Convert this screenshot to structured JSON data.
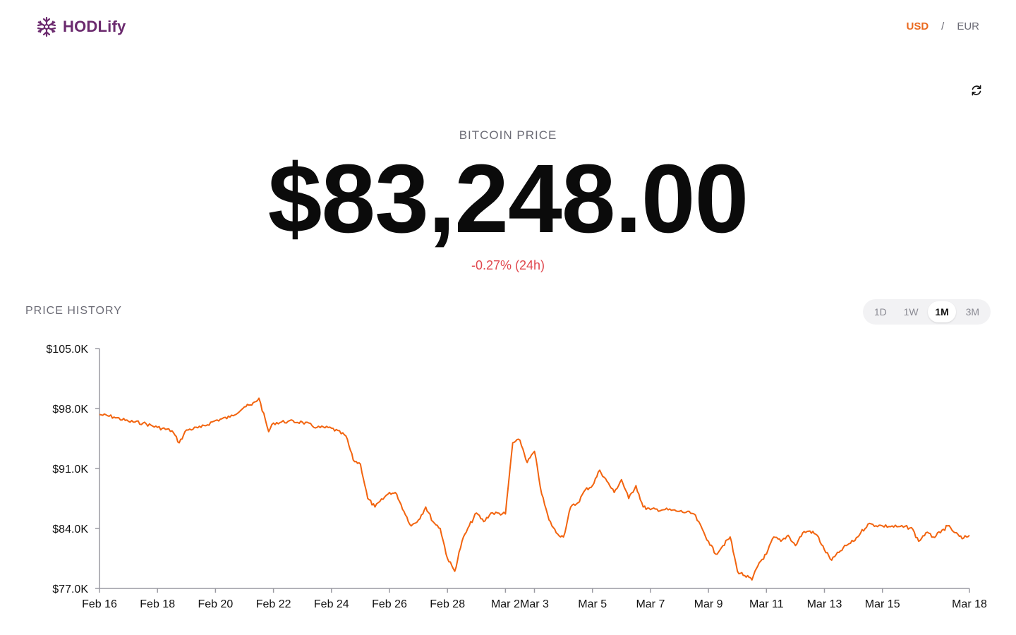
{
  "app": {
    "name": "HODLify"
  },
  "currency": {
    "options": [
      "USD",
      "EUR"
    ],
    "selected": "USD",
    "separator": "/"
  },
  "price": {
    "label": "BITCOIN PRICE",
    "value": "$83,248.00",
    "change": "-0.27% (24h)"
  },
  "history": {
    "label": "PRICE HISTORY",
    "ranges": [
      "1D",
      "1W",
      "1M",
      "3M"
    ],
    "selected_range": "1M"
  },
  "colors": {
    "accent": "#ea6a1f",
    "brand": "#6b2a6e",
    "negative": "#e0484e",
    "line": "#f2640f"
  },
  "icons": {
    "logo": "snowflake-icon",
    "refresh": "refresh-icon"
  },
  "chart_data": {
    "type": "line",
    "title": "",
    "xlabel": "",
    "ylabel": "",
    "ylim": [
      77000,
      105000
    ],
    "y_ticks": [
      77000,
      84000,
      91000,
      98000,
      105000
    ],
    "y_tick_labels": [
      "$77.0K",
      "$84.0K",
      "$91.0K",
      "$98.0K",
      "$105.0K"
    ],
    "x_range": [
      "2025-02-16",
      "2025-03-18"
    ],
    "x_ticks": [
      "2025-02-16",
      "2025-02-18",
      "2025-02-20",
      "2025-02-22",
      "2025-02-24",
      "2025-02-26",
      "2025-02-28",
      "2025-03-02",
      "2025-03-03",
      "2025-03-05",
      "2025-03-07",
      "2025-03-09",
      "2025-03-11",
      "2025-03-13",
      "2025-03-15",
      "2025-03-18"
    ],
    "x_tick_labels": [
      "Feb 16",
      "Feb 18",
      "Feb 20",
      "Feb 22",
      "Feb 24",
      "Feb 26",
      "Feb 28",
      "Mar 2",
      "Mar 3",
      "Mar 5",
      "Mar 7",
      "Mar 9",
      "Mar 11",
      "Mar 13",
      "Mar 15",
      "Mar 18"
    ],
    "grid": false,
    "series": [
      {
        "values": [
          [
            "2025-02-16 00:00",
            97300
          ],
          [
            "2025-02-16 12:00",
            97000
          ],
          [
            "2025-02-17 00:00",
            96500
          ],
          [
            "2025-02-17 12:00",
            96300
          ],
          [
            "2025-02-18 00:00",
            95800
          ],
          [
            "2025-02-18 12:00",
            95400
          ],
          [
            "2025-02-18 18:00",
            94000
          ],
          [
            "2025-02-19 00:00",
            95500
          ],
          [
            "2025-02-19 12:00",
            95800
          ],
          [
            "2025-02-20 00:00",
            96600
          ],
          [
            "2025-02-20 12:00",
            97000
          ],
          [
            "2025-02-21 00:00",
            98200
          ],
          [
            "2025-02-21 06:00",
            98400
          ],
          [
            "2025-02-21 12:00",
            99200
          ],
          [
            "2025-02-21 20:00",
            95300
          ],
          [
            "2025-02-22 00:00",
            96300
          ],
          [
            "2025-02-22 12:00",
            96500
          ],
          [
            "2025-02-23 00:00",
            96400
          ],
          [
            "2025-02-23 12:00",
            95800
          ],
          [
            "2025-02-24 00:00",
            95700
          ],
          [
            "2025-02-24 12:00",
            94800
          ],
          [
            "2025-02-24 18:00",
            92000
          ],
          [
            "2025-02-25 00:00",
            91500
          ],
          [
            "2025-02-25 06:00",
            87500
          ],
          [
            "2025-02-25 12:00",
            86500
          ],
          [
            "2025-02-26 00:00",
            88200
          ],
          [
            "2025-02-26 06:00",
            88000
          ],
          [
            "2025-02-26 12:00",
            86000
          ],
          [
            "2025-02-26 18:00",
            84300
          ],
          [
            "2025-02-27 00:00",
            85000
          ],
          [
            "2025-02-27 06:00",
            86500
          ],
          [
            "2025-02-27 12:00",
            84800
          ],
          [
            "2025-02-27 18:00",
            84000
          ],
          [
            "2025-02-28 00:00",
            80500
          ],
          [
            "2025-02-28 06:00",
            79000
          ],
          [
            "2025-02-28 12:00",
            82500
          ],
          [
            "2025-02-28 18:00",
            84300
          ],
          [
            "2025-03-01 00:00",
            85800
          ],
          [
            "2025-03-01 06:00",
            84800
          ],
          [
            "2025-03-01 12:00",
            85800
          ],
          [
            "2025-03-02 00:00",
            85700
          ],
          [
            "2025-03-02 06:00",
            94000
          ],
          [
            "2025-03-02 12:00",
            94300
          ],
          [
            "2025-03-02 18:00",
            91700
          ],
          [
            "2025-03-03 00:00",
            93000
          ],
          [
            "2025-03-03 06:00",
            88000
          ],
          [
            "2025-03-03 12:00",
            85000
          ],
          [
            "2025-03-03 18:00",
            83500
          ],
          [
            "2025-03-04 00:00",
            83000
          ],
          [
            "2025-03-04 06:00",
            86500
          ],
          [
            "2025-03-04 12:00",
            87000
          ],
          [
            "2025-03-04 18:00",
            88500
          ],
          [
            "2025-03-05 00:00",
            89000
          ],
          [
            "2025-03-05 06:00",
            90800
          ],
          [
            "2025-03-05 12:00",
            89500
          ],
          [
            "2025-03-05 18:00",
            88200
          ],
          [
            "2025-03-06 00:00",
            89700
          ],
          [
            "2025-03-06 06:00",
            87500
          ],
          [
            "2025-03-06 12:00",
            89000
          ],
          [
            "2025-03-06 18:00",
            86500
          ],
          [
            "2025-03-07 00:00",
            86200
          ],
          [
            "2025-03-07 12:00",
            86200
          ],
          [
            "2025-03-08 00:00",
            86000
          ],
          [
            "2025-03-08 12:00",
            85700
          ],
          [
            "2025-03-09 00:00",
            82500
          ],
          [
            "2025-03-09 06:00",
            81000
          ],
          [
            "2025-03-09 12:00",
            82000
          ],
          [
            "2025-03-09 18:00",
            83000
          ],
          [
            "2025-03-10 00:00",
            79000
          ],
          [
            "2025-03-10 06:00",
            78500
          ],
          [
            "2025-03-10 12:00",
            78000
          ],
          [
            "2025-03-10 18:00",
            80000
          ],
          [
            "2025-03-11 00:00",
            81000
          ],
          [
            "2025-03-11 06:00",
            83000
          ],
          [
            "2025-03-11 12:00",
            82500
          ],
          [
            "2025-03-11 18:00",
            83200
          ],
          [
            "2025-03-12 00:00",
            82000
          ],
          [
            "2025-03-12 06:00",
            83500
          ],
          [
            "2025-03-12 12:00",
            83700
          ],
          [
            "2025-03-12 18:00",
            83200
          ],
          [
            "2025-03-13 00:00",
            81500
          ],
          [
            "2025-03-13 06:00",
            80300
          ],
          [
            "2025-03-13 12:00",
            81200
          ],
          [
            "2025-03-13 18:00",
            82000
          ],
          [
            "2025-03-14 00:00",
            82500
          ],
          [
            "2025-03-14 06:00",
            83500
          ],
          [
            "2025-03-14 12:00",
            84500
          ],
          [
            "2025-03-15 00:00",
            84300
          ],
          [
            "2025-03-15 12:00",
            84200
          ],
          [
            "2025-03-16 00:00",
            84100
          ],
          [
            "2025-03-16 06:00",
            82500
          ],
          [
            "2025-03-16 12:00",
            83500
          ],
          [
            "2025-03-16 18:00",
            83000
          ],
          [
            "2025-03-17 00:00",
            83500
          ],
          [
            "2025-03-17 06:00",
            84300
          ],
          [
            "2025-03-17 12:00",
            83500
          ],
          [
            "2025-03-17 18:00",
            82800
          ],
          [
            "2025-03-18 00:00",
            83200
          ]
        ]
      }
    ]
  }
}
